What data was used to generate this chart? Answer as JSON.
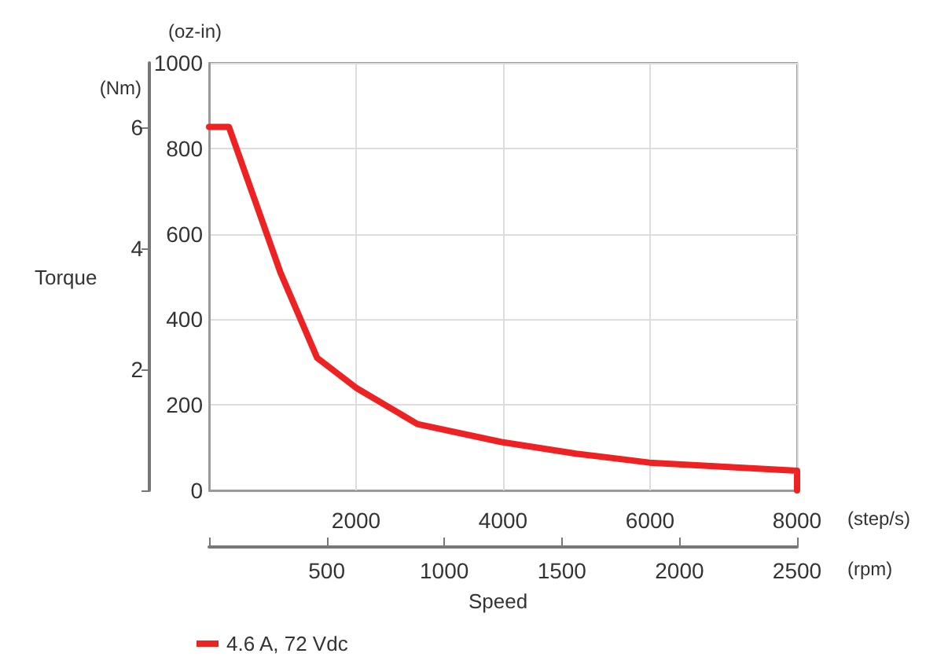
{
  "chart_data": {
    "type": "line",
    "xlabel": "(step/s)",
    "ylabel": "(oz-in)",
    "y2label": "(Nm)",
    "x2label": "(rpm)",
    "annotations": [
      "Torque",
      "Speed"
    ],
    "x": [
      0,
      270,
      970,
      1470,
      2000,
      2835,
      3980,
      4990,
      5990,
      8000,
      8000
    ],
    "series": [
      {
        "name": "4.6 A, 72 Vdc",
        "color": "#ee2222",
        "values": [
          850,
          850,
          510,
          310,
          240,
          155,
          113,
          86,
          65,
          46,
          0
        ]
      }
    ],
    "xlim": [
      0,
      8000
    ],
    "xticks": [
      {
        "value": 0,
        "label": null
      },
      2000,
      4000,
      6000,
      8000
    ],
    "ylim": [
      0,
      1000
    ],
    "yticks": [
      0,
      200,
      400,
      600,
      800,
      1000
    ],
    "y2lim": [
      0,
      7.06
    ],
    "y2ticks": [
      {
        "value": 0,
        "label": null
      },
      2,
      4,
      6
    ],
    "x2lim": [
      0,
      2500
    ],
    "x2ticks": [
      {
        "value": 0,
        "label": null
      },
      500,
      1000,
      1500,
      2000,
      2500
    ],
    "grid": true,
    "legend": "bottom left",
    "marker": "none",
    "line_style": "solid"
  }
}
